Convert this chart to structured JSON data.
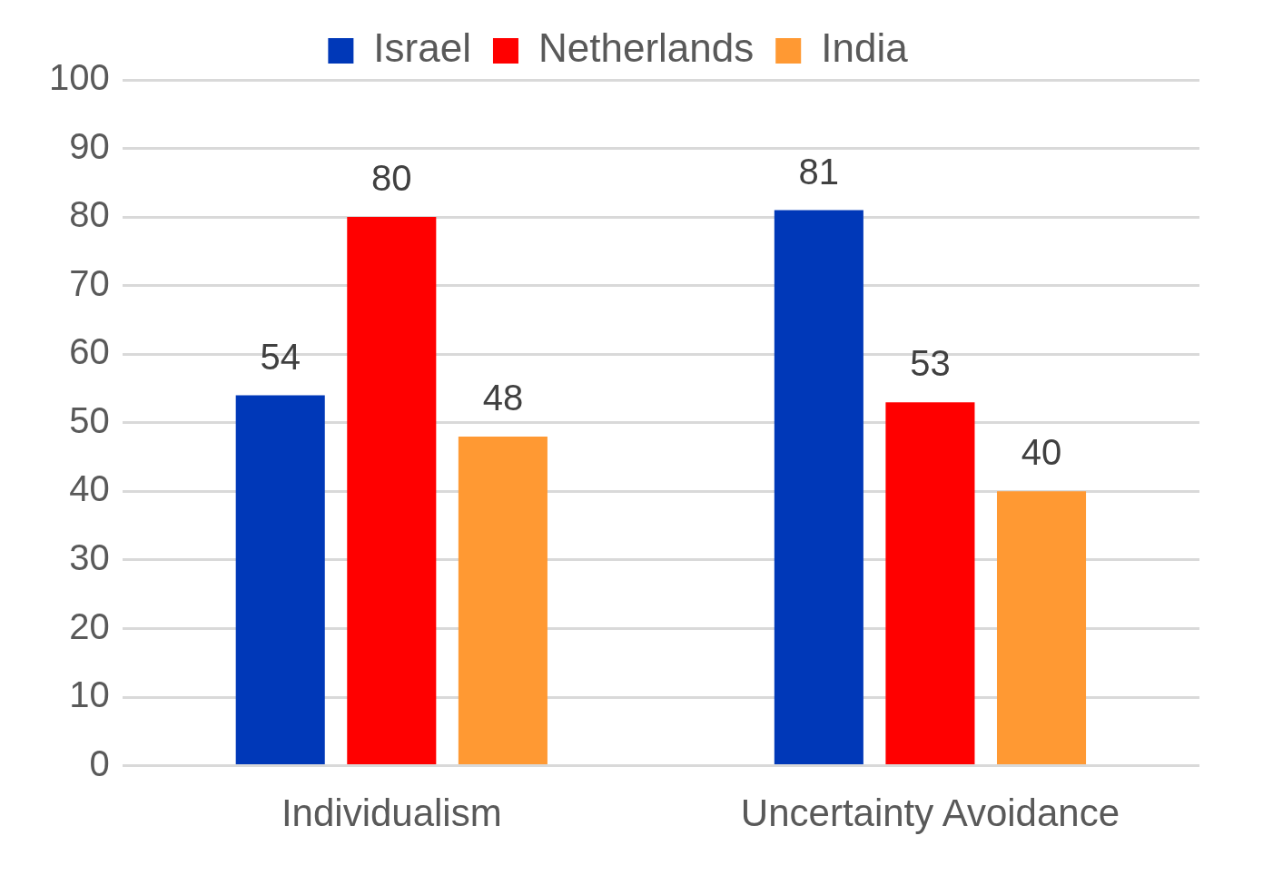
{
  "chart_data": {
    "type": "bar",
    "categories": [
      "Individualism",
      "Uncertainty Avoidance"
    ],
    "series": [
      {
        "name": "Israel",
        "color": "#0038b8",
        "values": [
          54,
          81
        ]
      },
      {
        "name": "Netherlands",
        "color": "#ff0000",
        "values": [
          80,
          53
        ]
      },
      {
        "name": "India",
        "color": "#ff9933",
        "values": [
          48,
          40
        ]
      }
    ],
    "ylim": [
      0,
      100
    ],
    "yticks": [
      0,
      10,
      20,
      30,
      40,
      50,
      60,
      70,
      80,
      90,
      100
    ],
    "grid": "y",
    "legend": "top",
    "data_labels": true
  }
}
